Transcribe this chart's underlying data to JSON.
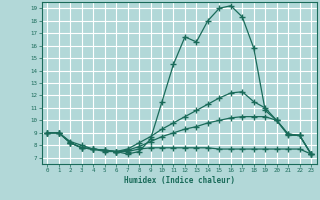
{
  "xlabel": "Humidex (Indice chaleur)",
  "xlim": [
    -0.5,
    23.5
  ],
  "ylim": [
    6.5,
    19.5
  ],
  "xticks": [
    0,
    1,
    2,
    3,
    4,
    5,
    6,
    7,
    8,
    9,
    10,
    11,
    12,
    13,
    14,
    15,
    16,
    17,
    18,
    19,
    20,
    21,
    22,
    23
  ],
  "yticks": [
    7,
    8,
    9,
    10,
    11,
    12,
    13,
    14,
    15,
    16,
    17,
    18,
    19
  ],
  "bg_color": "#b2d8d8",
  "grid_color": "#ffffff",
  "line_color": "#1a6b5a",
  "lines": [
    {
      "x": [
        0,
        1,
        2,
        3,
        4,
        5,
        6,
        7,
        8,
        9,
        10,
        11,
        12,
        13,
        14,
        15,
        16,
        17,
        18,
        19,
        20,
        21,
        22,
        23
      ],
      "y": [
        9,
        9,
        8.3,
        8.0,
        7.7,
        7.5,
        7.5,
        7.3,
        7.5,
        8.5,
        11.5,
        14.5,
        16.7,
        16.3,
        18.0,
        19.0,
        19.2,
        18.3,
        15.8,
        10.8,
        10.0,
        8.8,
        8.8,
        7.3
      ]
    },
    {
      "x": [
        0,
        1,
        2,
        3,
        4,
        5,
        6,
        7,
        8,
        9,
        10,
        11,
        12,
        13,
        14,
        15,
        16,
        17,
        18,
        19,
        20,
        21,
        22,
        23
      ],
      "y": [
        9,
        9,
        8.2,
        7.8,
        7.7,
        7.6,
        7.5,
        7.7,
        8.2,
        8.7,
        9.3,
        9.8,
        10.3,
        10.8,
        11.3,
        11.8,
        12.2,
        12.3,
        11.5,
        11.0,
        10.0,
        8.9,
        8.8,
        7.3
      ]
    },
    {
      "x": [
        0,
        1,
        2,
        3,
        4,
        5,
        6,
        7,
        8,
        9,
        10,
        11,
        12,
        13,
        14,
        15,
        16,
        17,
        18,
        19,
        20,
        21,
        22,
        23
      ],
      "y": [
        9,
        9,
        8.2,
        7.8,
        7.7,
        7.6,
        7.5,
        7.6,
        7.9,
        8.3,
        8.7,
        9.0,
        9.3,
        9.5,
        9.8,
        10.0,
        10.2,
        10.3,
        10.3,
        10.3,
        10.0,
        8.9,
        8.8,
        7.3
      ]
    },
    {
      "x": [
        0,
        1,
        2,
        3,
        4,
        5,
        6,
        7,
        8,
        9,
        10,
        11,
        12,
        13,
        14,
        15,
        16,
        17,
        18,
        19,
        20,
        21,
        22,
        23
      ],
      "y": [
        9,
        9,
        8.2,
        7.8,
        7.7,
        7.6,
        7.5,
        7.5,
        7.7,
        7.8,
        7.8,
        7.8,
        7.8,
        7.8,
        7.8,
        7.7,
        7.7,
        7.7,
        7.7,
        7.7,
        7.7,
        7.7,
        7.7,
        7.3
      ]
    }
  ]
}
